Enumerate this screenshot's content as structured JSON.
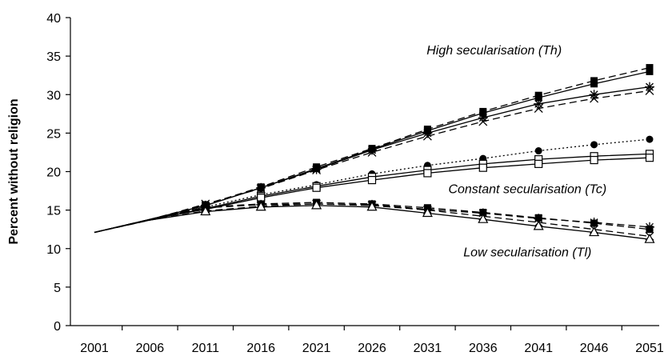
{
  "chart_data": {
    "type": "line",
    "title": "",
    "xlabel": "",
    "ylabel": "Percent without religion",
    "x": [
      2001,
      2006,
      2011,
      2016,
      2021,
      2026,
      2031,
      2036,
      2041,
      2046,
      2051
    ],
    "xticks": [
      "2001",
      "2006",
      "2011",
      "2016",
      "2021",
      "2026",
      "2031",
      "2036",
      "2041",
      "2046",
      "2051"
    ],
    "ylim": [
      0,
      40
    ],
    "yticks": [
      "0",
      "5",
      "10",
      "15",
      "20",
      "25",
      "30",
      "35",
      "40"
    ],
    "grid": false,
    "legend": "none",
    "annotations": [
      {
        "text": "High secularisation (Th)",
        "x": 2037,
        "y": 35.2
      },
      {
        "text": "Constant secularisation (Tc)",
        "x": 2040,
        "y": 17.2
      },
      {
        "text": "Low secularisation (Tl)",
        "x": 2040,
        "y": 9.0
      }
    ],
    "series": [
      {
        "group": "high",
        "marker": "filled-square",
        "dash": "dashed",
        "values": [
          12.1,
          13.8,
          15.7,
          18.0,
          20.6,
          23.0,
          25.5,
          27.8,
          29.9,
          31.8,
          33.5
        ]
      },
      {
        "group": "high",
        "marker": "filled-square",
        "dash": "solid",
        "values": [
          12.1,
          13.8,
          15.6,
          17.9,
          20.4,
          22.9,
          25.3,
          27.6,
          29.6,
          31.4,
          33.0
        ]
      },
      {
        "group": "high",
        "marker": "star",
        "dash": "solid",
        "values": [
          12.1,
          13.8,
          15.6,
          17.9,
          20.3,
          22.8,
          25.0,
          27.0,
          28.8,
          30.0,
          31.0
        ]
      },
      {
        "group": "high",
        "marker": "x",
        "dash": "dashed",
        "values": [
          12.1,
          13.7,
          15.8,
          17.8,
          20.2,
          22.5,
          24.6,
          26.5,
          28.2,
          29.5,
          30.5
        ]
      },
      {
        "group": "constant",
        "marker": "filled-circle",
        "dash": "dotted",
        "values": [
          12.1,
          13.8,
          15.4,
          17.0,
          18.3,
          19.7,
          20.8,
          21.7,
          22.7,
          23.5,
          24.2
        ]
      },
      {
        "group": "constant",
        "marker": "open-square",
        "dash": "solid",
        "values": [
          12.1,
          13.8,
          15.2,
          16.8,
          18.1,
          19.3,
          20.2,
          21.0,
          21.6,
          22.0,
          22.3
        ]
      },
      {
        "group": "constant",
        "marker": "open-square",
        "dash": "solid",
        "values": [
          12.1,
          13.8,
          15.1,
          16.6,
          17.9,
          18.9,
          19.8,
          20.5,
          21.0,
          21.5,
          21.8
        ]
      },
      {
        "group": "low",
        "marker": "filled-square",
        "dash": "dashed",
        "values": [
          12.1,
          13.8,
          15.4,
          15.8,
          16.0,
          15.8,
          15.3,
          14.7,
          14.0,
          13.3,
          12.5
        ]
      },
      {
        "group": "low",
        "marker": "star",
        "dash": "dashed",
        "values": [
          12.1,
          13.8,
          15.3,
          15.7,
          15.8,
          15.7,
          15.1,
          14.6,
          13.9,
          13.4,
          12.8
        ]
      },
      {
        "group": "low",
        "marker": "x",
        "dash": "dashed",
        "values": [
          12.1,
          13.7,
          14.9,
          15.5,
          15.8,
          15.6,
          15.0,
          14.2,
          13.4,
          12.5,
          11.6
        ]
      },
      {
        "group": "low",
        "marker": "open-triangle",
        "dash": "solid",
        "values": [
          12.1,
          13.7,
          14.8,
          15.4,
          15.6,
          15.4,
          14.6,
          13.8,
          12.9,
          12.1,
          11.2
        ]
      }
    ]
  }
}
